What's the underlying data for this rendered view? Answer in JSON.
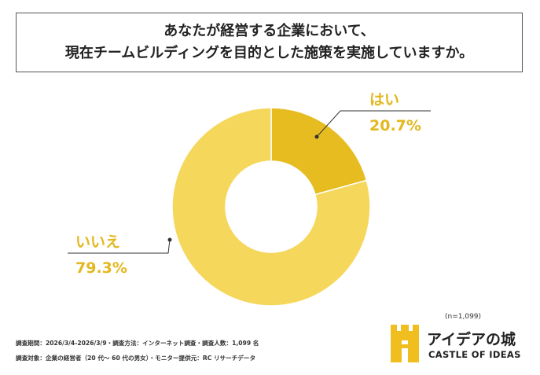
{
  "title": {
    "line1": "あなたが経営する企業において、",
    "line2": "現在チームビルディングを目的とした施策を実施していますか。"
  },
  "chart_data": {
    "type": "pie",
    "donut": true,
    "categories": [
      "はい",
      "いいえ"
    ],
    "values": [
      20.7,
      79.3
    ],
    "value_labels": [
      "20.7%",
      "79.3%"
    ],
    "colors": [
      "#E6BC21",
      "#F5D75C"
    ],
    "label_color": "#E3B81F",
    "sample_note": "(n=1,099)"
  },
  "footer": {
    "line1": "調査期間：2026/3/4-2026/3/9・調査方法：インターネット調査・調査人数：1,099 名",
    "line2": "調査対象：企業の経営者（20 代〜 60 代の男女）・モニター提供元：RC リサーチデータ"
  },
  "brand": {
    "name": "アイデアの城",
    "subtitle": "CASTLE OF IDEAS",
    "color": "#F0BE1E"
  }
}
